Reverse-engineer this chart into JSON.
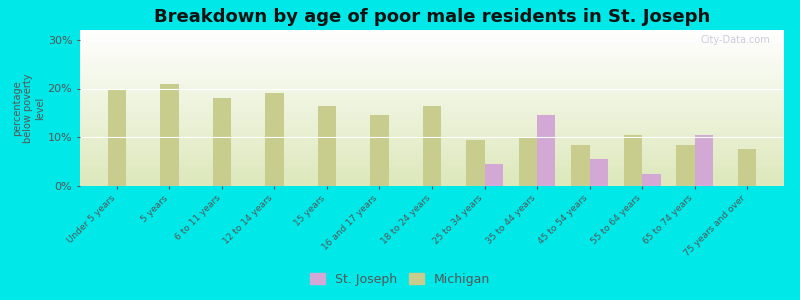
{
  "title": "Breakdown by age of poor male residents in St. Joseph",
  "ylabel": "percentage\nbelow poverty\nlevel",
  "categories": [
    "Under 5 years",
    "5 years",
    "6 to 11 years",
    "12 to 14 years",
    "15 years",
    "16 and 17 years",
    "18 to 24 years",
    "25 to 34 years",
    "35 to 44 years",
    "45 to 54 years",
    "55 to 64 years",
    "65 to 74 years",
    "75 years and over"
  ],
  "st_joseph": [
    null,
    null,
    null,
    null,
    null,
    null,
    null,
    4.5,
    14.5,
    5.5,
    2.5,
    10.5,
    null
  ],
  "michigan": [
    20.0,
    21.0,
    18.0,
    19.0,
    16.5,
    14.5,
    16.5,
    9.5,
    10.0,
    8.5,
    10.5,
    8.5,
    7.5
  ],
  "sj_color": "#d4a8d4",
  "mi_color": "#c8cc8c",
  "outer_bg": "#00e8e8",
  "ylim": [
    0,
    32
  ],
  "yticks": [
    0,
    10,
    20,
    30
  ],
  "ytick_labels": [
    "0%",
    "10%",
    "20%",
    "30%"
  ],
  "bar_width": 0.35,
  "title_fontsize": 13,
  "axis_fontsize": 8,
  "legend_labels": [
    "St. Joseph",
    "Michigan"
  ],
  "watermark": "City-Data.com"
}
